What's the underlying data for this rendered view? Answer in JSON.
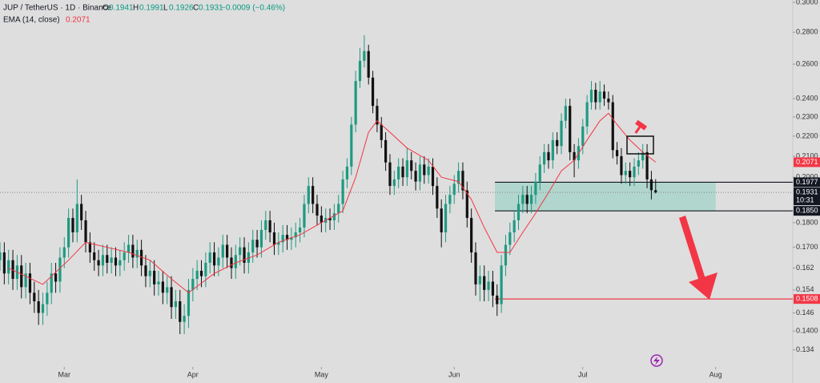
{
  "chart_data": {
    "type": "candlestick",
    "title": "JUP / TetherUS · 1D · Binance",
    "ohlc_labels": [
      "O",
      "H",
      "L",
      "C"
    ],
    "change": "−0.0009 (−0.46%)",
    "countdown": "10:31",
    "up_color": "#1e9a82",
    "down_color": "#111111",
    "log_scale": true,
    "grid": false,
    "xlim": [
      0,
      185
    ],
    "ylim": [
      0.1288,
      0.3017
    ],
    "xticks": [
      {
        "value": 15,
        "label": "Mar"
      },
      {
        "value": 45,
        "label": "Apr"
      },
      {
        "value": 75,
        "label": "May"
      },
      {
        "value": 106,
        "label": "Jun"
      },
      {
        "value": 136,
        "label": "Jul"
      },
      {
        "value": 167,
        "label": "Aug"
      }
    ],
    "yticks": [
      {
        "value": 0.3,
        "label": "0.3000"
      },
      {
        "value": 0.28,
        "label": "0.2800"
      },
      {
        "value": 0.26,
        "label": "0.2600"
      },
      {
        "value": 0.24,
        "label": "0.2400"
      },
      {
        "value": 0.23,
        "label": "0.2300"
      },
      {
        "value": 0.22,
        "label": "0.2200"
      },
      {
        "value": 0.21,
        "label": "0.2100"
      },
      {
        "value": 0.2,
        "label": "0.2000"
      },
      {
        "value": 0.18,
        "label": "0.1800"
      },
      {
        "value": 0.17,
        "label": "0.1700"
      },
      0.162,
      0.154,
      0.146,
      {
        "value": 0.14,
        "label": "0.1400"
      },
      0.134
    ],
    "open": [
      0.165,
      0.168,
      0.16,
      0.165,
      0.158,
      0.163,
      0.155,
      0.16,
      0.153,
      0.15,
      0.146,
      0.149,
      0.153,
      0.16,
      0.157,
      0.166,
      0.17,
      0.182,
      0.176,
      0.188,
      0.181,
      0.172,
      0.168,
      0.165,
      0.163,
      0.167,
      0.164,
      0.166,
      0.163,
      0.165,
      0.168,
      0.171,
      0.166,
      0.169,
      0.163,
      0.159,
      0.161,
      0.156,
      0.157,
      0.153,
      0.155,
      0.148,
      0.15,
      0.143,
      0.145,
      0.154,
      0.158,
      0.161,
      0.159,
      0.164,
      0.168,
      0.163,
      0.166,
      0.171,
      0.166,
      0.162,
      0.167,
      0.17,
      0.164,
      0.168,
      0.173,
      0.17,
      0.177,
      0.181,
      0.176,
      0.171,
      0.172,
      0.175,
      0.173,
      0.174,
      0.176,
      0.178,
      0.188,
      0.196,
      0.188,
      0.183,
      0.18,
      0.182,
      0.181,
      0.184,
      0.188,
      0.199,
      0.205,
      0.226,
      0.25,
      0.262,
      0.268,
      0.252,
      0.236,
      0.226,
      0.218,
      0.207,
      0.196,
      0.199,
      0.205,
      0.2,
      0.208,
      0.203,
      0.198,
      0.206,
      0.201,
      0.205,
      0.196,
      0.186,
      0.176,
      0.188,
      0.192,
      0.197,
      0.203,
      0.194,
      0.182,
      0.168,
      0.156,
      0.159,
      0.154,
      0.157,
      0.152,
      0.149,
      0.163,
      0.171,
      0.176,
      0.181,
      0.188,
      0.192,
      0.188,
      0.192,
      0.198,
      0.206,
      0.212,
      0.208,
      0.218,
      0.215,
      0.228,
      0.236,
      0.212,
      0.208,
      0.215,
      0.225,
      0.238,
      0.245,
      0.238,
      0.244,
      0.24,
      0.238,
      0.213,
      0.21,
      0.201,
      0.203,
      0.2,
      0.205,
      0.208,
      0.212,
      0.199,
      0.1941
    ],
    "high": [
      0.172,
      0.172,
      0.169,
      0.169,
      0.167,
      0.167,
      0.164,
      0.164,
      0.157,
      0.154,
      0.153,
      0.157,
      0.164,
      0.164,
      0.17,
      0.174,
      0.186,
      0.186,
      0.199,
      0.192,
      0.185,
      0.176,
      0.172,
      0.169,
      0.171,
      0.171,
      0.17,
      0.17,
      0.169,
      0.172,
      0.175,
      0.175,
      0.173,
      0.173,
      0.167,
      0.165,
      0.165,
      0.161,
      0.161,
      0.159,
      0.159,
      0.154,
      0.154,
      0.149,
      0.158,
      0.162,
      0.165,
      0.165,
      0.168,
      0.172,
      0.172,
      0.17,
      0.175,
      0.175,
      0.17,
      0.171,
      0.174,
      0.174,
      0.172,
      0.177,
      0.177,
      0.181,
      0.185,
      0.185,
      0.18,
      0.176,
      0.179,
      0.179,
      0.178,
      0.18,
      0.182,
      0.192,
      0.2,
      0.2,
      0.192,
      0.187,
      0.186,
      0.186,
      0.188,
      0.192,
      0.203,
      0.209,
      0.23,
      0.256,
      0.27,
      0.278,
      0.272,
      0.256,
      0.24,
      0.23,
      0.222,
      0.211,
      0.203,
      0.209,
      0.209,
      0.214,
      0.212,
      0.207,
      0.21,
      0.21,
      0.209,
      0.209,
      0.2,
      0.19,
      0.192,
      0.196,
      0.201,
      0.207,
      0.207,
      0.198,
      0.186,
      0.172,
      0.163,
      0.163,
      0.161,
      0.161,
      0.156,
      0.167,
      0.175,
      0.18,
      0.185,
      0.192,
      0.196,
      0.196,
      0.196,
      0.202,
      0.21,
      0.216,
      0.216,
      0.222,
      0.222,
      0.232,
      0.24,
      0.24,
      0.216,
      0.219,
      0.229,
      0.242,
      0.25,
      0.249,
      0.25,
      0.248,
      0.244,
      0.242,
      0.217,
      0.214,
      0.207,
      0.207,
      0.209,
      0.212,
      0.216,
      0.216,
      0.203,
      0.1991
    ],
    "low": [
      0.161,
      0.156,
      0.156,
      0.154,
      0.154,
      0.151,
      0.151,
      0.149,
      0.146,
      0.142,
      0.142,
      0.145,
      0.149,
      0.153,
      0.153,
      0.162,
      0.166,
      0.172,
      0.172,
      0.177,
      0.168,
      0.164,
      0.161,
      0.159,
      0.159,
      0.16,
      0.16,
      0.159,
      0.159,
      0.161,
      0.164,
      0.162,
      0.162,
      0.159,
      0.155,
      0.155,
      0.152,
      0.152,
      0.149,
      0.149,
      0.144,
      0.144,
      0.139,
      0.139,
      0.141,
      0.15,
      0.154,
      0.155,
      0.155,
      0.16,
      0.159,
      0.159,
      0.162,
      0.162,
      0.158,
      0.158,
      0.163,
      0.16,
      0.16,
      0.164,
      0.166,
      0.166,
      0.173,
      0.172,
      0.167,
      0.167,
      0.168,
      0.169,
      0.169,
      0.17,
      0.172,
      0.174,
      0.184,
      0.184,
      0.179,
      0.176,
      0.176,
      0.177,
      0.177,
      0.18,
      0.184,
      0.195,
      0.201,
      0.222,
      0.246,
      0.258,
      0.248,
      0.232,
      0.222,
      0.214,
      0.203,
      0.192,
      0.192,
      0.195,
      0.196,
      0.196,
      0.199,
      0.194,
      0.194,
      0.197,
      0.197,
      0.192,
      0.182,
      0.17,
      0.172,
      0.184,
      0.188,
      0.193,
      0.19,
      0.178,
      0.164,
      0.152,
      0.15,
      0.15,
      0.15,
      0.148,
      0.145,
      0.146,
      0.159,
      0.167,
      0.172,
      0.177,
      0.184,
      0.184,
      0.184,
      0.188,
      0.194,
      0.202,
      0.204,
      0.204,
      0.211,
      0.211,
      0.224,
      0.208,
      0.2,
      0.204,
      0.211,
      0.221,
      0.234,
      0.234,
      0.234,
      0.236,
      0.234,
      0.209,
      0.206,
      0.197,
      0.197,
      0.196,
      0.196,
      0.201,
      0.204,
      0.195,
      0.19,
      0.1926
    ],
    "close": [
      0.168,
      0.16,
      0.165,
      0.158,
      0.163,
      0.155,
      0.16,
      0.153,
      0.15,
      0.146,
      0.149,
      0.153,
      0.16,
      0.157,
      0.166,
      0.17,
      0.182,
      0.176,
      0.188,
      0.181,
      0.172,
      0.168,
      0.165,
      0.163,
      0.167,
      0.164,
      0.166,
      0.163,
      0.165,
      0.168,
      0.171,
      0.166,
      0.169,
      0.163,
      0.159,
      0.161,
      0.156,
      0.157,
      0.153,
      0.155,
      0.148,
      0.15,
      0.143,
      0.145,
      0.154,
      0.158,
      0.161,
      0.159,
      0.164,
      0.168,
      0.163,
      0.166,
      0.171,
      0.166,
      0.162,
      0.167,
      0.17,
      0.164,
      0.168,
      0.173,
      0.17,
      0.177,
      0.181,
      0.176,
      0.171,
      0.172,
      0.175,
      0.173,
      0.174,
      0.176,
      0.178,
      0.188,
      0.196,
      0.188,
      0.183,
      0.18,
      0.182,
      0.181,
      0.184,
      0.188,
      0.199,
      0.205,
      0.226,
      0.25,
      0.262,
      0.268,
      0.252,
      0.236,
      0.226,
      0.218,
      0.207,
      0.196,
      0.199,
      0.205,
      0.2,
      0.208,
      0.203,
      0.198,
      0.206,
      0.201,
      0.205,
      0.196,
      0.186,
      0.176,
      0.188,
      0.192,
      0.197,
      0.203,
      0.194,
      0.182,
      0.168,
      0.156,
      0.159,
      0.154,
      0.157,
      0.152,
      0.149,
      0.163,
      0.171,
      0.176,
      0.181,
      0.188,
      0.192,
      0.188,
      0.192,
      0.198,
      0.206,
      0.212,
      0.208,
      0.218,
      0.215,
      0.228,
      0.236,
      0.212,
      0.208,
      0.215,
      0.225,
      0.238,
      0.245,
      0.238,
      0.244,
      0.24,
      0.238,
      0.213,
      0.21,
      0.201,
      0.203,
      0.2,
      0.205,
      0.208,
      0.212,
      0.199,
      0.1941,
      0.1931
    ],
    "series": [
      {
        "name": "EMA (14, close)",
        "color": "#f23645",
        "x": [
          2,
          10,
          16,
          20,
          25,
          30,
          35,
          40,
          44,
          50,
          55,
          60,
          65,
          70,
          75,
          80,
          83,
          86,
          88,
          91,
          95,
          100,
          103,
          107,
          110,
          113,
          116,
          119,
          122,
          125,
          128,
          131,
          134,
          137,
          140,
          142,
          144,
          147,
          150,
          153
        ],
        "values": [
          0.162,
          0.156,
          0.165,
          0.172,
          0.17,
          0.168,
          0.165,
          0.158,
          0.153,
          0.16,
          0.164,
          0.167,
          0.172,
          0.175,
          0.18,
          0.185,
          0.2,
          0.222,
          0.228,
          0.222,
          0.214,
          0.208,
          0.2,
          0.198,
          0.19,
          0.178,
          0.168,
          0.168,
          0.176,
          0.184,
          0.193,
          0.203,
          0.208,
          0.218,
          0.228,
          0.232,
          0.226,
          0.218,
          0.212,
          0.2071
        ]
      }
    ],
    "levels": [
      {
        "value": 0.1977,
        "color": "#131722"
      },
      {
        "value": 0.185,
        "label": "0.1850",
        "color": "#131722"
      },
      {
        "value": 0.1508,
        "color": "#f23645"
      }
    ]
  }
}
